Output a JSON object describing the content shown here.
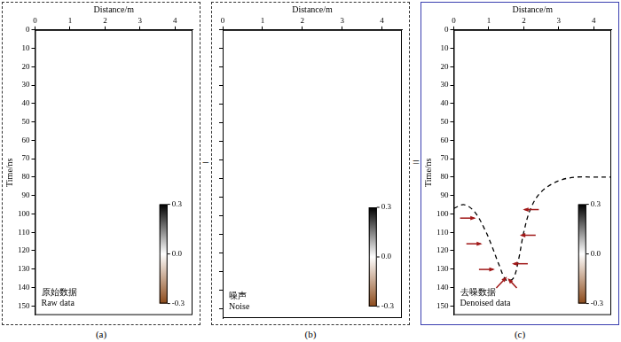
{
  "chart_data": [
    {
      "type": "heatmap",
      "letter": "(a)",
      "label": [
        "原始数据",
        "Raw data"
      ],
      "x_label": "Distance/m",
      "y_label": "Time/ns",
      "xlim": [
        0,
        4.5
      ],
      "xticks": [
        0,
        1,
        2,
        3,
        4
      ],
      "ylim": [
        0,
        155
      ],
      "yticks": [
        0,
        10,
        20,
        30,
        40,
        50,
        60,
        70,
        80,
        90,
        100,
        110,
        120,
        130,
        140,
        150
      ],
      "colorbar": {
        "range": [
          -0.3,
          0.3
        ],
        "ticks": [
          0.3,
          {
            "value": 0,
            "label": "0.0"
          },
          -0.3
        ],
        "colors": [
          "#8c4a1a",
          "#ffffff",
          "#000000"
        ]
      }
    },
    {
      "type": "heatmap",
      "letter": "(b)",
      "label": [
        "噪声",
        "Noise"
      ],
      "x_label": "Distance/m",
      "tick_labels": "x",
      "xlim": [
        0,
        4.5
      ],
      "xticks": [
        0,
        1,
        2,
        3,
        4
      ],
      "ylim": [
        0,
        155
      ],
      "yticks": [
        0,
        10,
        20,
        30,
        40,
        50,
        60,
        70,
        80,
        90,
        100,
        110,
        120,
        130,
        140,
        150
      ],
      "colorbar": {
        "range": [
          -0.3,
          0.3
        ],
        "ticks": [
          0.3,
          {
            "value": 0,
            "label": "0.0"
          },
          -0.3
        ],
        "colors": [
          "#8c4a1a",
          "#ffffff",
          "#000000"
        ]
      }
    },
    {
      "type": "heatmap",
      "letter": "(c)",
      "label": [
        "去噪数据",
        "Denoised data"
      ],
      "x_label": "Distance/m",
      "y_label": "Time/ns",
      "xlim": [
        0,
        4.5
      ],
      "xticks": [
        0,
        1,
        2,
        3,
        4
      ],
      "ylim": [
        0,
        155
      ],
      "yticks": [
        0,
        10,
        20,
        30,
        40,
        50,
        60,
        70,
        80,
        90,
        100,
        110,
        120,
        130,
        140,
        150
      ],
      "colorbar": {
        "range": [
          -0.3,
          0.3
        ],
        "ticks": [
          0.3,
          {
            "value": 0,
            "label": "0.0"
          },
          -0.3
        ],
        "colors": [
          "#8c4a1a",
          "#ffffff",
          "#000000"
        ]
      },
      "series": [
        {
          "type": "line",
          "line_style": "dashed",
          "color": "#000000",
          "x": [
            0,
            0.3,
            0.6,
            0.9,
            1.1,
            1.3,
            1.5,
            1.7,
            1.85,
            2.0,
            2.2,
            2.5,
            3.0,
            3.5,
            4.0,
            4.5
          ],
          "values": [
            97,
            95,
            99,
            109,
            118,
            128,
            136,
            135,
            125,
            110,
            97,
            88,
            82,
            80,
            80,
            80
          ]
        }
      ]
    }
  ],
  "operators": [
    "−",
    "="
  ]
}
